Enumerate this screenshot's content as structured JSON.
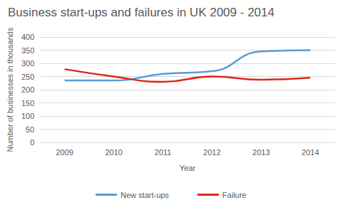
{
  "chart_data": {
    "type": "line",
    "title": "Business start-ups and failures in UK 2009 - 2014",
    "x_label": "Year",
    "y_label": "Number of businesses in thousands",
    "categories": [
      "2009",
      "2010",
      "2011",
      "2012",
      "2013",
      "2014"
    ],
    "series": [
      {
        "name": "New start-ups",
        "color": "#5b9bd5",
        "values": [
          235,
          235,
          260,
          270,
          345,
          350
        ]
      },
      {
        "name": "Failure",
        "color": "#e0251b",
        "values": [
          278,
          250,
          230,
          250,
          238,
          245
        ]
      }
    ],
    "ylim": [
      0,
      400
    ],
    "yticks": [
      0,
      50,
      100,
      150,
      200,
      250,
      300,
      350,
      400
    ],
    "grid": true,
    "legend": "bottom"
  }
}
